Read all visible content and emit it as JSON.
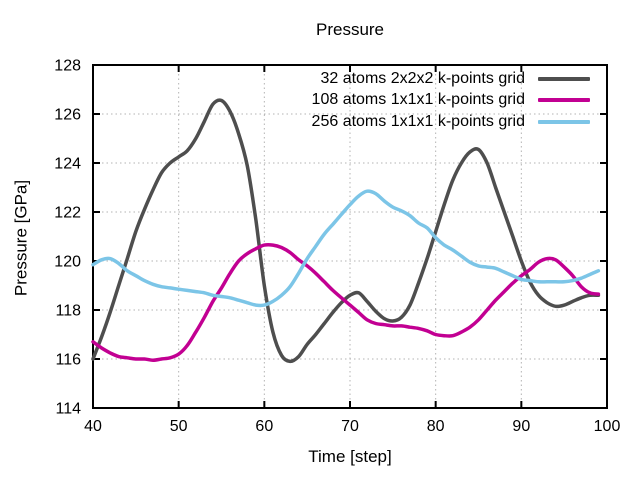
{
  "chart_data": {
    "type": "line",
    "title": "Pressure",
    "xlabel": "Time [step]",
    "ylabel": "Pressure [GPa]",
    "xlim": [
      40,
      100
    ],
    "ylim": [
      114,
      128
    ],
    "xticks": [
      40,
      50,
      60,
      70,
      80,
      90,
      100
    ],
    "yticks": [
      114,
      116,
      118,
      120,
      122,
      124,
      126,
      128
    ],
    "grid": true,
    "grid_style": "dotted",
    "grid_color": "#b3b3b3",
    "border_color": "#000000",
    "text_color": "#000000",
    "background": "#ffffff",
    "legend_position": "top-right-inside",
    "x": [
      40,
      41,
      42,
      43,
      44,
      45,
      46,
      47,
      48,
      49,
      50,
      51,
      52,
      53,
      54,
      55,
      56,
      57,
      58,
      59,
      60,
      61,
      62,
      63,
      64,
      65,
      66,
      67,
      68,
      69,
      70,
      71,
      72,
      73,
      74,
      75,
      76,
      77,
      78,
      79,
      80,
      81,
      82,
      83,
      84,
      85,
      86,
      87,
      88,
      89,
      90,
      91,
      92,
      93,
      94,
      95,
      96,
      97,
      98,
      99
    ],
    "series": [
      {
        "name": "32 atoms 2x2x2 k-points grid",
        "color": "#4e4e4e",
        "values": [
          116.0,
          116.9,
          117.9,
          119.0,
          120.1,
          121.2,
          122.1,
          122.9,
          123.6,
          124.0,
          124.25,
          124.5,
          125.0,
          125.7,
          126.4,
          126.55,
          126.1,
          125.2,
          123.9,
          121.7,
          119.0,
          117.1,
          116.15,
          115.9,
          116.1,
          116.6,
          117.0,
          117.45,
          117.9,
          118.3,
          118.6,
          118.7,
          118.35,
          117.95,
          117.65,
          117.55,
          117.7,
          118.2,
          119.1,
          120.1,
          121.2,
          122.3,
          123.3,
          124.0,
          124.45,
          124.55,
          124.0,
          123.0,
          122.0,
          121.0,
          120.0,
          119.15,
          118.6,
          118.3,
          118.15,
          118.2,
          118.35,
          118.5,
          118.6,
          118.6
        ]
      },
      {
        "name": "108 atoms 1x1x1 k-points grid",
        "color": "#c20092",
        "values": [
          116.7,
          116.45,
          116.25,
          116.1,
          116.05,
          116.0,
          116.0,
          115.95,
          116.0,
          116.05,
          116.2,
          116.55,
          117.1,
          117.7,
          118.35,
          118.9,
          119.5,
          120.0,
          120.3,
          120.5,
          120.65,
          120.65,
          120.55,
          120.35,
          120.05,
          119.8,
          119.5,
          119.15,
          118.8,
          118.5,
          118.2,
          117.9,
          117.6,
          117.45,
          117.4,
          117.35,
          117.35,
          117.3,
          117.25,
          117.15,
          117.0,
          116.95,
          116.95,
          117.1,
          117.3,
          117.6,
          118.0,
          118.4,
          118.75,
          119.1,
          119.4,
          119.65,
          119.95,
          120.1,
          120.05,
          119.75,
          119.4,
          118.95,
          118.7,
          118.65
        ]
      },
      {
        "name": "256 atoms 1x1x1 k-points grid",
        "color": "#7cc5e7",
        "values": [
          119.85,
          120.05,
          120.1,
          119.9,
          119.6,
          119.4,
          119.2,
          119.05,
          118.95,
          118.9,
          118.85,
          118.8,
          118.75,
          118.7,
          118.6,
          118.55,
          118.5,
          118.4,
          118.3,
          118.2,
          118.2,
          118.35,
          118.6,
          118.95,
          119.5,
          120.1,
          120.6,
          121.1,
          121.5,
          121.9,
          122.3,
          122.65,
          122.85,
          122.75,
          122.45,
          122.2,
          122.05,
          121.85,
          121.55,
          121.35,
          120.95,
          120.65,
          120.45,
          120.2,
          119.95,
          119.8,
          119.75,
          119.7,
          119.55,
          119.4,
          119.25,
          119.2,
          119.15,
          119.15,
          119.15,
          119.15,
          119.2,
          119.3,
          119.45,
          119.6
        ]
      }
    ]
  }
}
